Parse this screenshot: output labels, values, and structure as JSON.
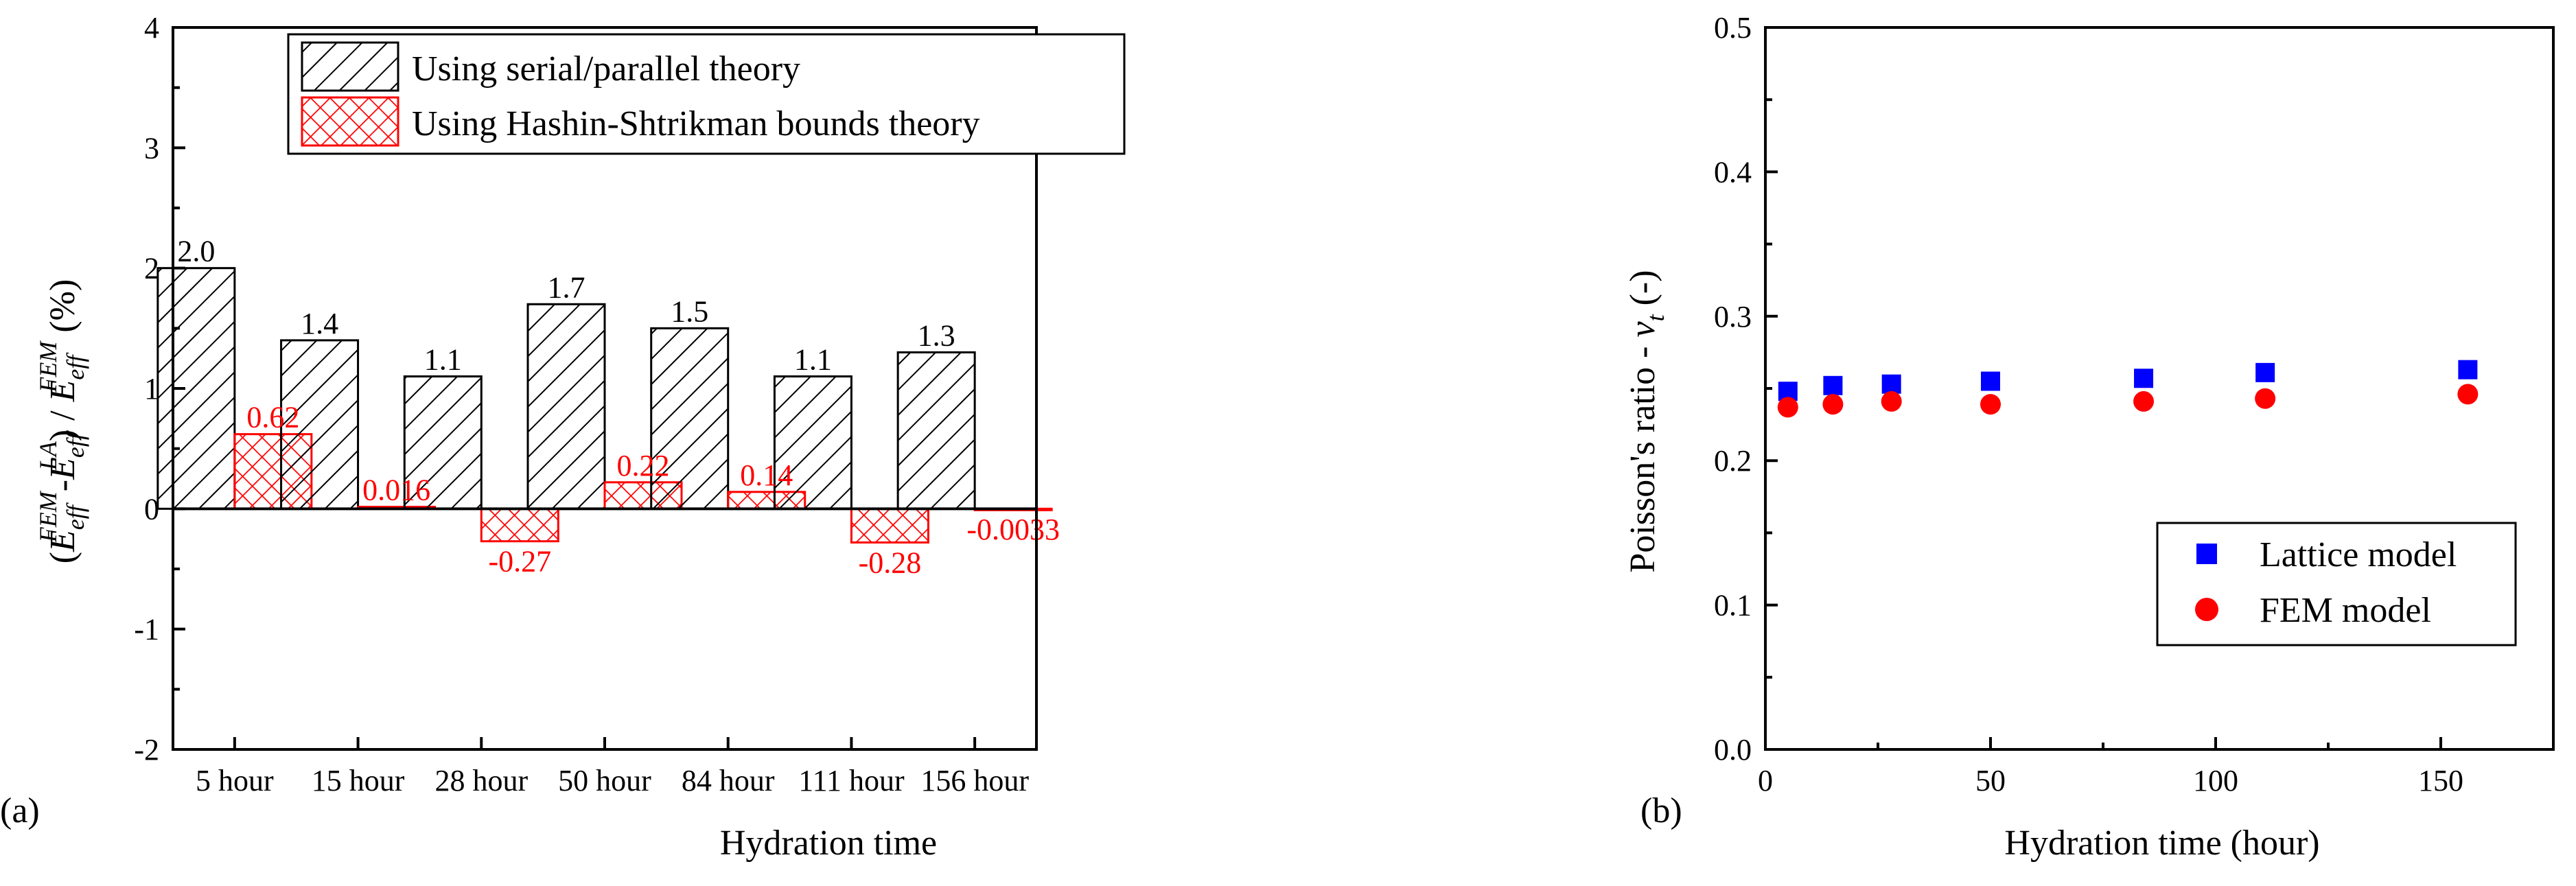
{
  "chart_data": [
    {
      "type": "bar",
      "panel": "(a)",
      "title": "",
      "xlabel": "Hydration time",
      "ylabel": {
        "prefix": "(",
        "E": "E",
        "sub": "eff",
        "sup_fem": "FEM",
        "sup_la": "LA",
        "minus": "-",
        "slash": ") / ",
        "suffix": " (%)"
      },
      "categories": [
        "5 hour",
        "15 hour",
        "28 hour",
        "50 hour",
        "84 hour",
        "111 hour",
        "156 hour"
      ],
      "series": [
        {
          "name": "Using serial/parallel theory",
          "values": [
            2.0,
            1.4,
            1.1,
            1.7,
            1.5,
            1.1,
            1.3
          ],
          "labels": [
            "2.0",
            "1.4",
            "1.1",
            "1.7",
            "1.5",
            "1.1",
            "1.3"
          ],
          "color": "#000000",
          "pattern": "hatch"
        },
        {
          "name": "Using Hashin-Shtrikman bounds theory",
          "values": [
            0.62,
            0.016,
            -0.27,
            0.22,
            0.14,
            -0.28,
            -0.0033
          ],
          "labels": [
            "0.62",
            "0.016",
            "-0.27",
            "0.22",
            "0.14",
            "-0.28",
            "-0.0033"
          ],
          "color": "#ff0000",
          "pattern": "crosshatch"
        }
      ],
      "ylim": [
        -2,
        4
      ],
      "yticks": [
        -2,
        -1,
        0,
        1,
        2,
        3,
        4
      ],
      "ytick_labels": [
        "-2",
        "-1",
        "0",
        "1",
        "2",
        "3",
        "4"
      ],
      "legend_position": "top-center",
      "grid": false
    },
    {
      "type": "scatter",
      "panel": "(b)",
      "title": "",
      "xlabel": "Hydration time (hour)",
      "ylabel": {
        "text": "Poisson's ratio - ",
        "symbol": "ν",
        "sub": "t",
        "suffix": " (-)"
      },
      "xlim": [
        0,
        175
      ],
      "ylim": [
        0,
        0.5
      ],
      "xticks": [
        0,
        50,
        100,
        150
      ],
      "xtick_labels": [
        "0",
        "50",
        "100",
        "150"
      ],
      "yticks": [
        0,
        0.1,
        0.2,
        0.3,
        0.4,
        0.5
      ],
      "ytick_labels": [
        "0.0",
        "0.1",
        "0.2",
        "0.3",
        "0.4",
        "0.5"
      ],
      "series": [
        {
          "name": "Lattice model",
          "marker": "square",
          "color": "#0000ff",
          "x": [
            5,
            15,
            28,
            50,
            84,
            111,
            156
          ],
          "y": [
            0.248,
            0.252,
            0.253,
            0.255,
            0.257,
            0.261,
            0.263
          ]
        },
        {
          "name": "FEM model",
          "marker": "circle",
          "color": "#ff0000",
          "x": [
            5,
            15,
            28,
            50,
            84,
            111,
            156
          ],
          "y": [
            0.237,
            0.239,
            0.241,
            0.239,
            0.241,
            0.243,
            0.246
          ]
        }
      ],
      "legend_position": "bottom-right",
      "grid": false
    }
  ]
}
